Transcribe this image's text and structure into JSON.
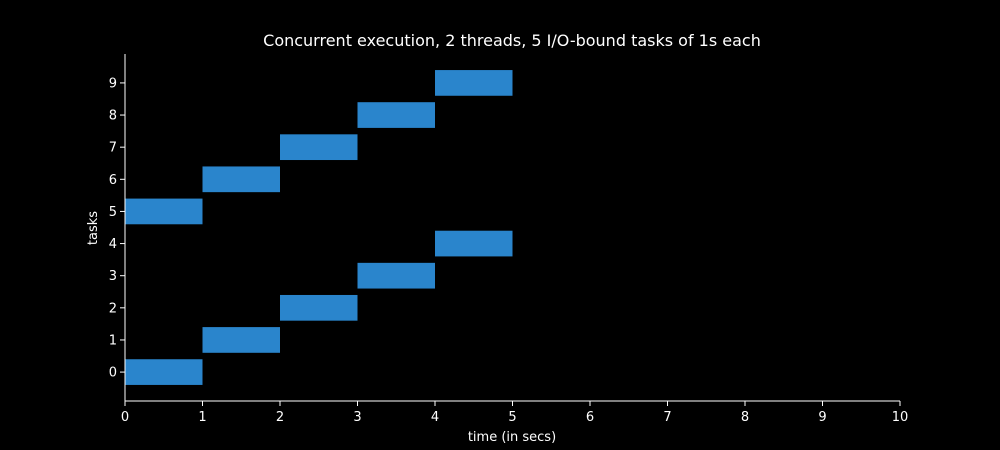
{
  "chart_data": {
    "type": "bar",
    "orientation": "horizontal",
    "title": "Concurrent execution, 2 threads, 5 I/O-bound tasks of 1s each",
    "xlabel": "time (in secs)",
    "ylabel": "tasks",
    "xlim": [
      0,
      10
    ],
    "ylim": [
      -0.9,
      9.9
    ],
    "xticks": [
      "0",
      "1",
      "2",
      "3",
      "4",
      "5",
      "6",
      "7",
      "8",
      "9",
      "10"
    ],
    "yticks": [
      "0",
      "1",
      "2",
      "3",
      "4",
      "5",
      "6",
      "7",
      "8",
      "9"
    ],
    "grid": false,
    "bar_color": "#2a85cc",
    "background": "#000000",
    "foreground": "#ffffff",
    "tasks": [
      {
        "task": 0,
        "start": 0,
        "end": 1
      },
      {
        "task": 1,
        "start": 1,
        "end": 2
      },
      {
        "task": 2,
        "start": 2,
        "end": 3
      },
      {
        "task": 3,
        "start": 3,
        "end": 4
      },
      {
        "task": 4,
        "start": 4,
        "end": 5
      },
      {
        "task": 5,
        "start": 0,
        "end": 1
      },
      {
        "task": 6,
        "start": 1,
        "end": 2
      },
      {
        "task": 7,
        "start": 2,
        "end": 3
      },
      {
        "task": 8,
        "start": 3,
        "end": 4
      },
      {
        "task": 9,
        "start": 4,
        "end": 5
      }
    ]
  }
}
